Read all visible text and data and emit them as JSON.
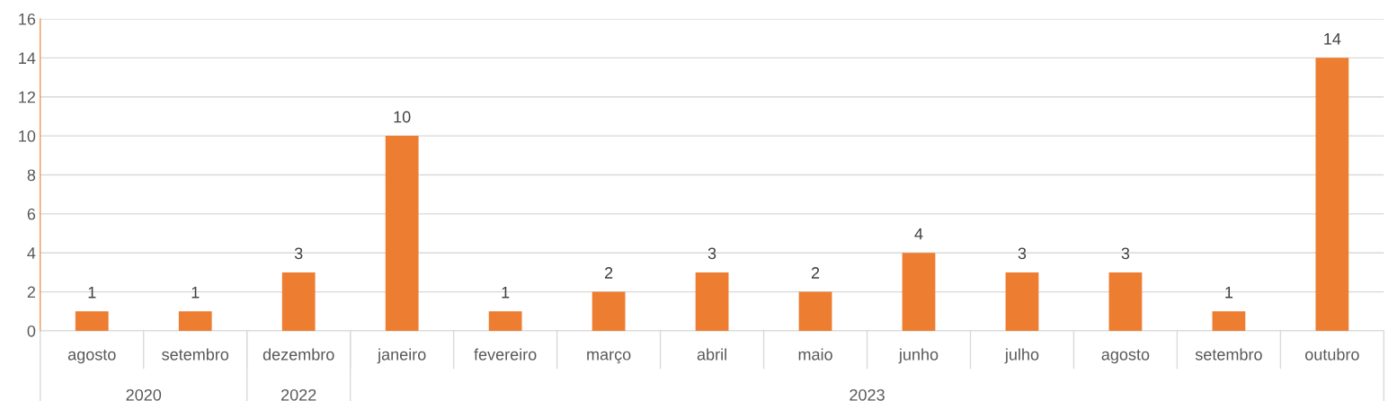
{
  "chart_data": {
    "type": "bar",
    "categories": [
      "agosto",
      "setembro",
      "dezembro",
      "janeiro",
      "fevereiro",
      "março",
      "abril",
      "maio",
      "junho",
      "julho",
      "agosto",
      "setembro",
      "outubro"
    ],
    "values": [
      1,
      1,
      3,
      10,
      1,
      2,
      3,
      2,
      4,
      3,
      3,
      1,
      14
    ],
    "color": "#ed7d31",
    "ylim": [
      0,
      16
    ],
    "yticks": [
      0,
      2,
      4,
      6,
      8,
      10,
      12,
      14,
      16
    ],
    "grid": "y",
    "data_labels": true,
    "annotations": [
      "2020",
      "2022",
      "2023"
    ]
  }
}
